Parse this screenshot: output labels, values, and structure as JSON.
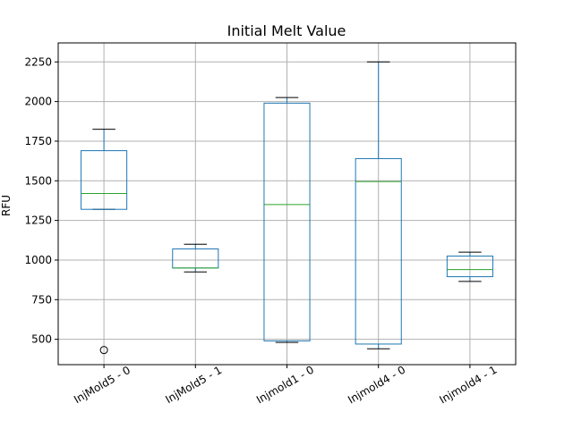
{
  "chart_data": {
    "type": "box",
    "title": "Initial Melt Value",
    "ylabel": "RFU",
    "xlabel": "",
    "ylim": [
      340,
      2370
    ],
    "yticks": [
      500,
      750,
      1000,
      1250,
      1500,
      1750,
      2000,
      2250
    ],
    "grid": true,
    "categories": [
      "InjMold5 - 0",
      "InjMold5 - 1",
      "Injmold1 - 0",
      "Injmold4 - 0",
      "Injmold4 - 1"
    ],
    "boxes": [
      {
        "label": "InjMold5 - 0",
        "whisker_low": 1320,
        "q1": 1320,
        "median": 1420,
        "q3": 1690,
        "whisker_high": 1825,
        "outliers": [
          432
        ]
      },
      {
        "label": "InjMold5 - 1",
        "whisker_low": 925,
        "q1": 950,
        "median": 950,
        "q3": 1070,
        "whisker_high": 1100,
        "outliers": []
      },
      {
        "label": "Injmold1 - 0",
        "whisker_low": 480,
        "q1": 490,
        "median": 1350,
        "q3": 1990,
        "whisker_high": 2025,
        "outliers": []
      },
      {
        "label": "Injmold4 - 0",
        "whisker_low": 440,
        "q1": 470,
        "median": 1495,
        "q3": 1640,
        "whisker_high": 2250,
        "outliers": []
      },
      {
        "label": "Injmold4 - 1",
        "whisker_low": 865,
        "q1": 895,
        "median": 940,
        "q3": 1025,
        "whisker_high": 1050,
        "outliers": []
      }
    ],
    "colors": {
      "box": "#1f77b4",
      "median": "#2ca02c",
      "whisker": "#000000",
      "grid": "#b0b0b0",
      "outlier": "#000000"
    }
  }
}
